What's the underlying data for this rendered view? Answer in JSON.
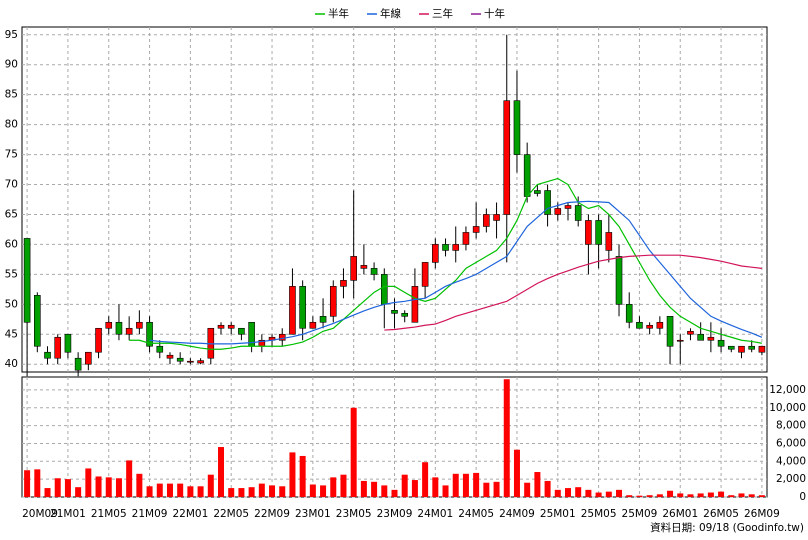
{
  "chart_data": [
    {
      "type": "candlestick",
      "categories": [
        "20M09",
        null,
        null,
        null,
        "21M01",
        null,
        null,
        null,
        "21M05",
        null,
        null,
        null,
        "21M09",
        null,
        null,
        null,
        "22M01",
        null,
        null,
        null,
        "22M05",
        null,
        null,
        null,
        "22M09",
        null,
        null,
        null,
        "23M01",
        null,
        null,
        null,
        "23M05",
        null,
        null,
        null,
        "23M09",
        null,
        null,
        null,
        "24M01",
        null,
        null,
        null,
        "24M05",
        null,
        null,
        null,
        "24M09",
        null,
        null,
        null,
        "25M01",
        null,
        null,
        null,
        "25M05",
        null,
        null,
        null,
        "25M09",
        null,
        null,
        null,
        "26M01",
        null,
        null,
        null,
        "26M05",
        null,
        null,
        null,
        "26M09"
      ],
      "open": [
        61,
        51.5,
        42,
        41,
        45,
        41,
        40,
        42,
        46,
        47,
        45,
        46,
        47,
        43,
        41,
        41,
        40.5,
        40.2,
        41,
        46,
        46,
        46,
        47,
        43,
        44,
        44,
        45,
        53,
        46,
        48,
        48,
        53,
        54,
        56,
        56,
        55,
        49,
        48.5,
        47,
        53,
        57,
        60,
        59,
        60,
        62,
        63,
        64,
        65,
        84,
        75,
        69,
        69,
        65,
        66,
        66.5,
        60,
        64,
        59,
        58,
        50,
        47,
        46,
        46,
        48,
        44,
        45,
        45,
        44,
        44,
        43,
        42,
        43,
        42
      ],
      "high": [
        61,
        52,
        43,
        45,
        45,
        42,
        42,
        46,
        48,
        50,
        48,
        49,
        48,
        44,
        42,
        42,
        41,
        41,
        46,
        47,
        47,
        46,
        47,
        45,
        45,
        46,
        56,
        54,
        48,
        51,
        54,
        56,
        69,
        60,
        57,
        56,
        51,
        49,
        56,
        57,
        61,
        61,
        63,
        63,
        67,
        66,
        67,
        95,
        89,
        77,
        70,
        70,
        67,
        67,
        68,
        65,
        65,
        65,
        60,
        52,
        48,
        47,
        48,
        48,
        45,
        46,
        47,
        47,
        46,
        43,
        43,
        44,
        43
      ],
      "low": [
        38,
        42,
        40,
        40,
        41,
        38,
        39,
        41,
        45,
        44,
        44,
        45,
        42,
        41,
        40,
        40,
        40,
        40,
        40,
        45,
        45,
        44,
        42,
        42,
        43,
        43,
        45,
        44,
        46,
        46,
        47,
        51,
        51,
        55,
        54,
        46,
        46,
        47,
        47,
        51,
        56,
        58,
        57,
        59,
        61,
        62,
        61,
        57,
        72,
        67,
        68,
        63,
        64,
        64,
        63,
        55,
        56,
        57,
        48,
        46,
        46,
        45,
        45,
        40,
        40,
        44,
        44,
        42,
        42,
        42,
        41,
        42,
        41.5
      ],
      "close": [
        47,
        43,
        41,
        44.5,
        42,
        39,
        42,
        46,
        47,
        45,
        46,
        47,
        43,
        42,
        41.5,
        40.5,
        40.5,
        40.6,
        46,
        46.5,
        46.5,
        45,
        43,
        44,
        44.5,
        45,
        53,
        46,
        47,
        47,
        53,
        54,
        58,
        56.5,
        55,
        50,
        48.5,
        48,
        53,
        57,
        60,
        59,
        60,
        62,
        63,
        65,
        65,
        84,
        75,
        68,
        68.5,
        65,
        66,
        66.5,
        64,
        64,
        60,
        62,
        50,
        47,
        46,
        46.5,
        47,
        43,
        44,
        45.5,
        44,
        44.5,
        43,
        42.5,
        43,
        42.5,
        43
      ],
      "up_color": "#ff0000",
      "down_color": "#00a000",
      "series": [
        {
          "name": "半年",
          "color": "#00c000",
          "values": [
            null,
            null,
            null,
            null,
            null,
            null,
            null,
            null,
            null,
            null,
            44,
            44,
            43.5,
            43.5,
            43.5,
            43.3,
            43,
            42.7,
            42.5,
            42.5,
            42.7,
            43,
            43,
            43,
            43,
            43,
            43.3,
            43.7,
            44.5,
            45.5,
            46,
            47.5,
            49,
            50.5,
            52,
            53,
            53,
            52,
            51,
            50.5,
            51,
            52.5,
            54,
            56,
            57,
            58,
            59,
            61,
            64,
            68,
            70,
            70.5,
            71,
            70,
            67,
            66,
            66.5,
            65,
            63,
            60,
            57,
            54,
            51.5,
            49.5,
            48,
            47,
            46,
            45.5,
            45,
            44.5,
            44,
            43.8,
            43.5
          ]
        },
        {
          "name": "年線",
          "color": "#1e64dc",
          "values": [
            null,
            null,
            null,
            null,
            null,
            null,
            null,
            null,
            null,
            null,
            null,
            null,
            44,
            43.8,
            43.7,
            43.6,
            43.5,
            43.5,
            43.4,
            43.4,
            43.4,
            43.5,
            43.6,
            43.8,
            44,
            44.3,
            44.6,
            45,
            45.6,
            46.2,
            46.8,
            47.5,
            48.2,
            48.9,
            49.5,
            50,
            50.3,
            50.5,
            50.8,
            51,
            52,
            53,
            53.7,
            54.3,
            55,
            56,
            57,
            58,
            60.5,
            63,
            64.5,
            66,
            66.5,
            67,
            67.1,
            67.2,
            67.1,
            67,
            65.5,
            64,
            61.5,
            59,
            57,
            55,
            53,
            51,
            49.5,
            48,
            47.2,
            46.5,
            45.8,
            45.2,
            44.5
          ]
        },
        {
          "name": "三年",
          "color": "#d2145a",
          "values": [
            null,
            null,
            null,
            null,
            null,
            null,
            null,
            null,
            null,
            null,
            null,
            null,
            null,
            null,
            null,
            null,
            null,
            null,
            null,
            null,
            null,
            null,
            null,
            null,
            null,
            null,
            null,
            null,
            null,
            null,
            null,
            null,
            null,
            null,
            null,
            45.7,
            45.8,
            46,
            46.2,
            46.5,
            46.7,
            47.3,
            48,
            48.5,
            49,
            49.5,
            50,
            50.5,
            51.5,
            52.5,
            53.5,
            54.3,
            55,
            55.6,
            56.2,
            56.7,
            57.2,
            57.5,
            57.8,
            58,
            58.1,
            58.2,
            58.2,
            58.2,
            58.2,
            58,
            57.8,
            57.5,
            57.2,
            56.8,
            56.4,
            56.2,
            56
          ]
        },
        {
          "name": "十年",
          "color": "#8c1e96",
          "values": [
            null,
            null,
            null,
            null,
            null,
            null,
            null,
            null,
            null,
            null,
            null,
            null,
            null,
            null,
            null,
            null,
            null,
            null,
            null,
            null,
            null,
            null,
            null,
            null,
            null,
            null,
            null,
            null,
            null,
            null,
            null,
            null,
            null,
            null,
            null,
            null,
            null,
            null,
            null,
            null,
            null,
            null,
            null,
            null,
            null,
            null,
            null,
            null,
            null,
            null,
            null,
            null,
            null,
            null,
            null,
            null,
            null,
            null,
            null,
            null,
            null,
            null,
            null,
            null,
            null,
            null,
            null,
            null,
            null,
            null,
            null,
            null,
            null
          ]
        }
      ],
      "ylim": [
        38.7,
        96.3
      ],
      "yticks": [
        40,
        45,
        50,
        55,
        60,
        65,
        70,
        75,
        80,
        85,
        90,
        95
      ],
      "grid": true
    },
    {
      "type": "bar",
      "color": "#ff0000",
      "values": [
        3000,
        3100,
        1000,
        2100,
        2000,
        1100,
        3200,
        2300,
        2200,
        2100,
        4100,
        2600,
        1200,
        1500,
        1500,
        1500,
        1200,
        1200,
        2500,
        5600,
        1000,
        1000,
        1100,
        1500,
        1300,
        1200,
        5000,
        4600,
        1400,
        1300,
        2200,
        2500,
        10000,
        1800,
        1700,
        1300,
        800,
        2500,
        1900,
        3900,
        2200,
        1300,
        2600,
        2600,
        2700,
        1600,
        1700,
        13200,
        5300,
        1600,
        2800,
        1800,
        800,
        1000,
        1100,
        800,
        500,
        600,
        800,
        200,
        150,
        200,
        300,
        700,
        400,
        300,
        400,
        500,
        600,
        200,
        400,
        300,
        200
      ],
      "ylim": [
        0,
        13450
      ],
      "yticks": [
        0,
        {
          "value": 2000,
          "label": "2,000"
        },
        {
          "value": 4000,
          "label": "4,000"
        },
        {
          "value": 6000,
          "label": "6,000"
        },
        {
          "value": 8000,
          "label": "8,000"
        },
        {
          "value": 10000,
          "label": "10,000"
        },
        {
          "value": 12000,
          "label": "12,000"
        }
      ],
      "grid": true
    }
  ],
  "footer": "資料日期: 09/18 (Goodinfo.tw)"
}
